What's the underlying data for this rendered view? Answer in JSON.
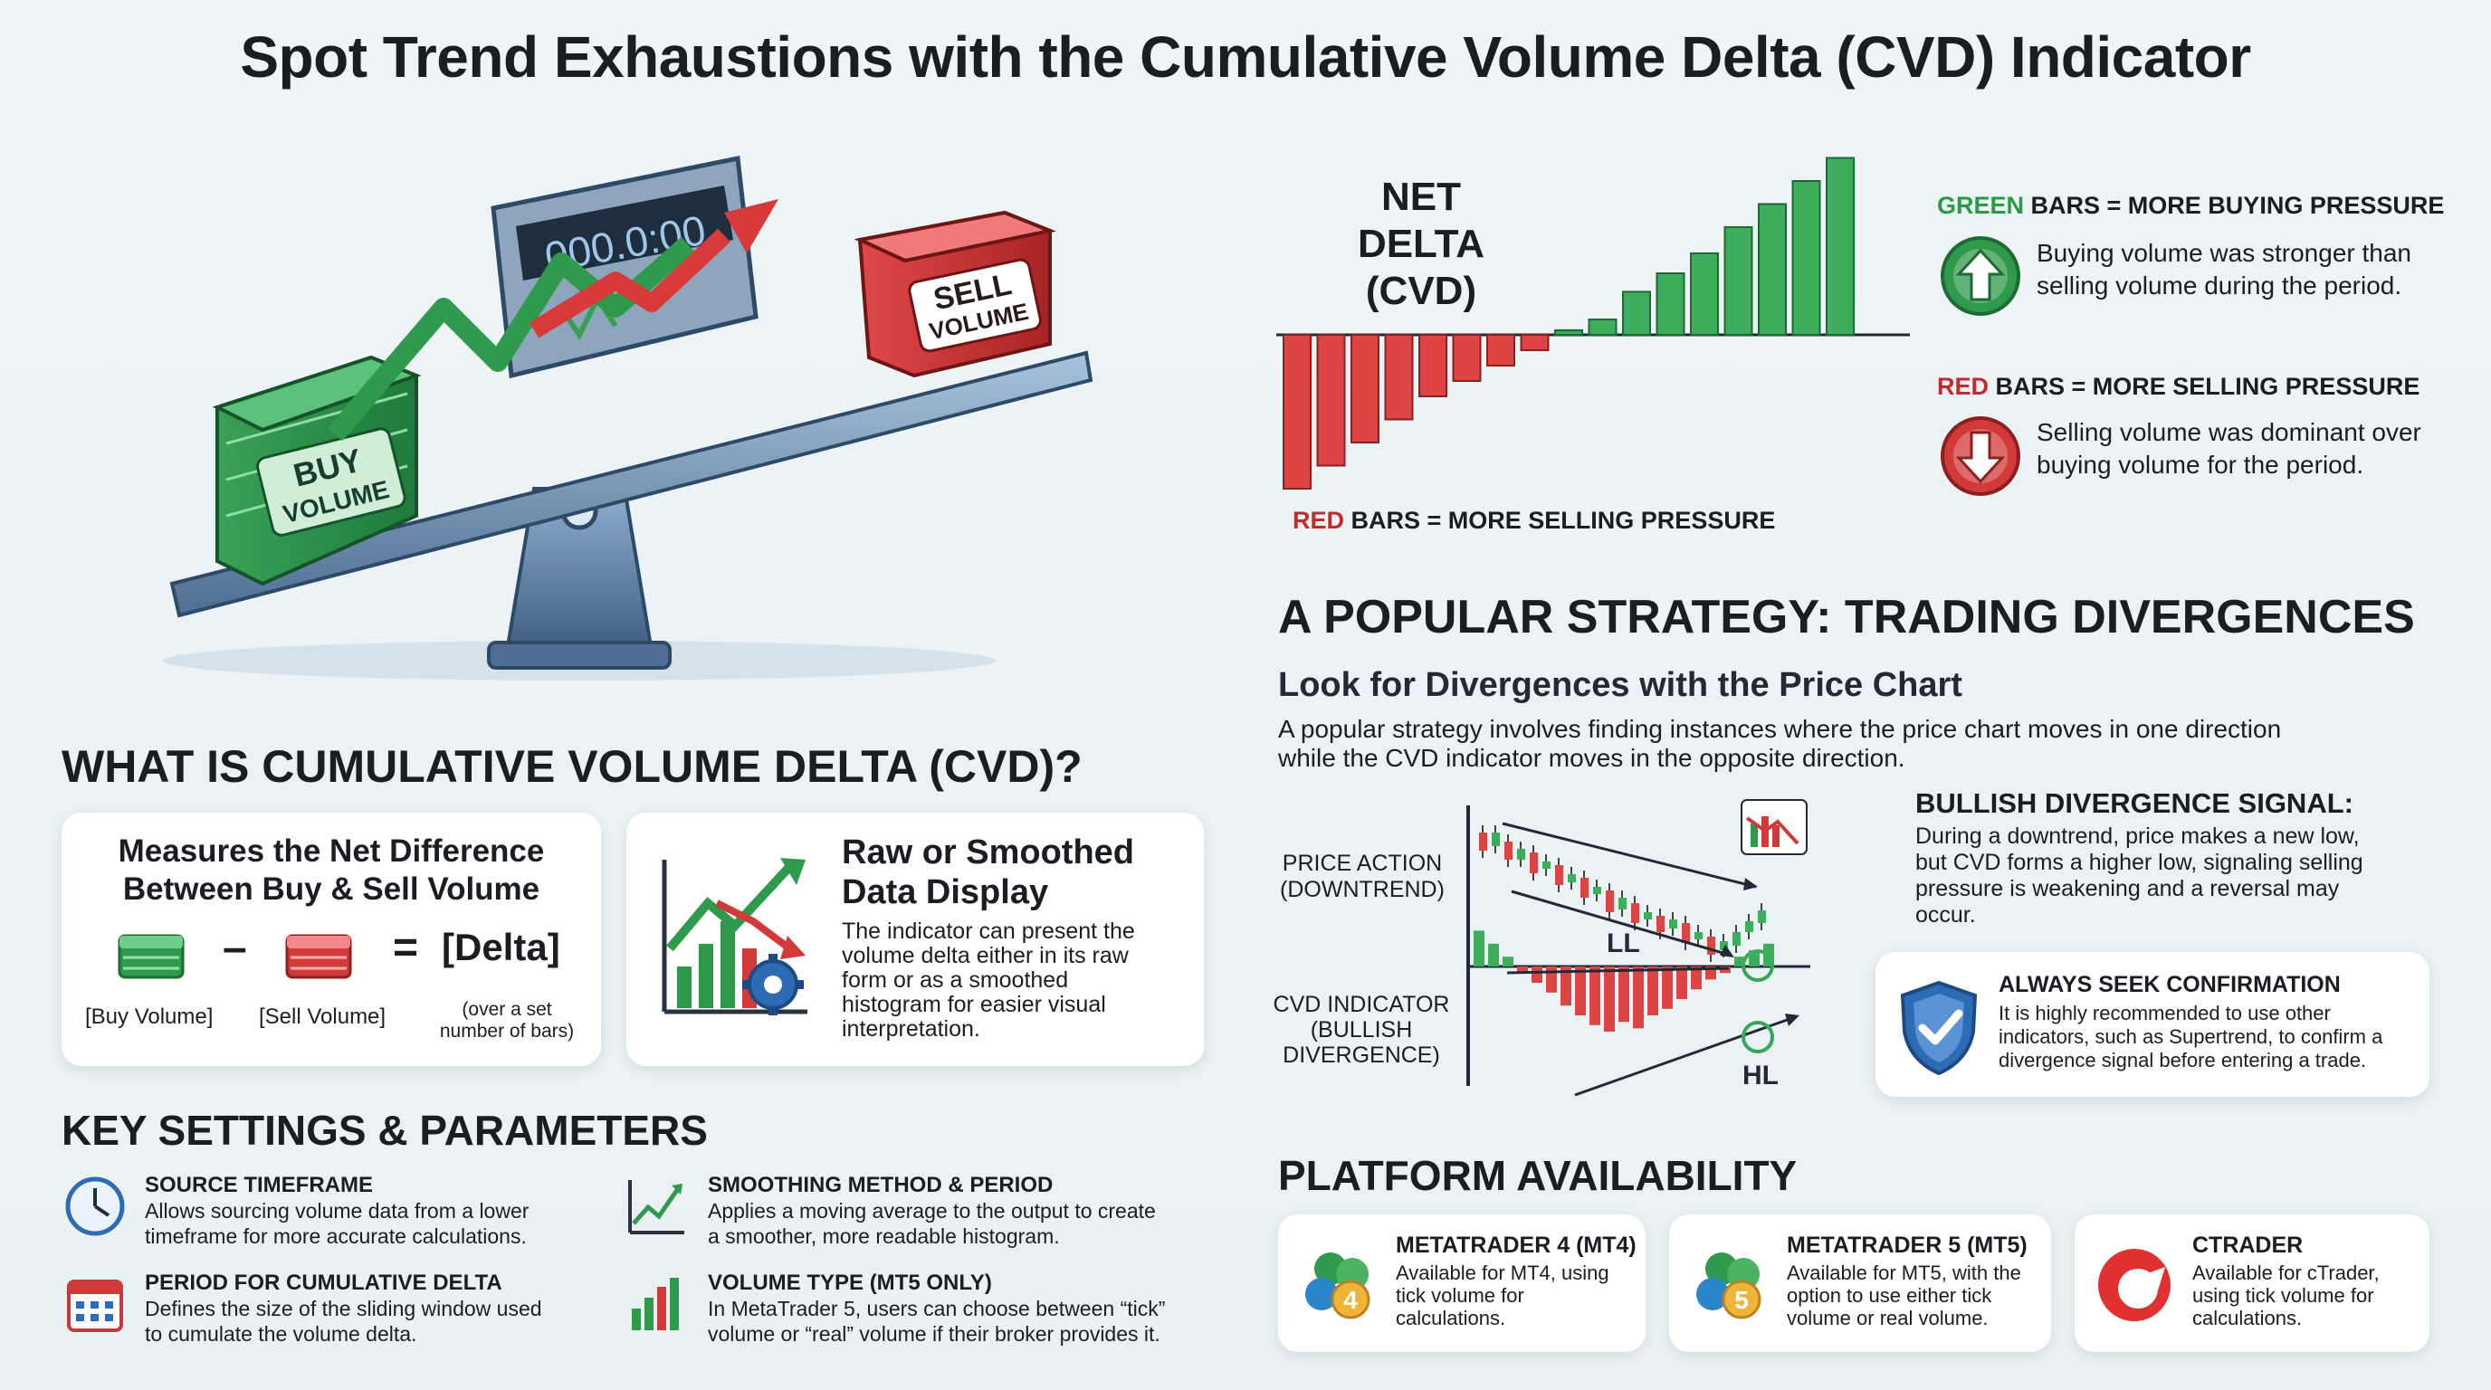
{
  "title": "Spot Trend Exhaustions with the Cumulative Volume Delta (CVD) Indicator",
  "hero": {
    "timer": "000.0:00",
    "buy_label_1": "BUY",
    "buy_label_2": "VOLUME",
    "sell_label_1": "SELL",
    "sell_label_2": "VOLUME"
  },
  "net_delta": {
    "title_line1": "NET DELTA",
    "title_line2": "(CVD)",
    "bottom_prefix": "RED",
    "bottom_suffix": " BARS = MORE SELLING PRESSURE",
    "chart_data": {
      "type": "bar",
      "values": [
        -10,
        -8.5,
        -7,
        -5.5,
        -4,
        -3,
        -2,
        -1,
        0.3,
        1,
        2.8,
        4,
        5.3,
        7,
        8.5,
        10,
        11.5
      ]
    }
  },
  "legend": {
    "green_head_prefix": "GREEN",
    "green_head_suffix": " BARS = MORE BUYING PRESSURE",
    "green_desc_1": "Buying volume was stronger than",
    "green_desc_2": "selling volume during the period.",
    "red_head_prefix": "RED",
    "red_head_suffix": " BARS = MORE SELLING PRESSURE",
    "red_desc_1": "Selling volume was dominant over",
    "red_desc_2": "buying volume for the period."
  },
  "what_is": {
    "heading": "WHAT IS CUMULATIVE VOLUME DELTA (CVD)?",
    "card1_title_1": "Measures the Net Difference",
    "card1_title_2": "Between Buy & Sell Volume",
    "minus": "–",
    "equals": "=",
    "delta": "[Delta]",
    "buy_caption": "[Buy Volume]",
    "sell_caption": "[Sell Volume]",
    "delta_caption_1": "(over a set",
    "delta_caption_2": "number of bars)",
    "card2_title_1": "Raw or Smoothed",
    "card2_title_2": "Data Display",
    "card2_body_1": "The indicator can present the",
    "card2_body_2": "volume delta either in its raw",
    "card2_body_3": "form or as a smoothed",
    "card2_body_4": "histogram for easier visual",
    "card2_body_5": "interpretation."
  },
  "settings": {
    "heading": "KEY SETTINGS & PARAMETERS",
    "items": [
      {
        "title": "SOURCE TIMEFRAME",
        "line1": "Allows sourcing volume data from a lower",
        "line2": "timeframe for more accurate calculations."
      },
      {
        "title": "SMOOTHING METHOD & PERIOD",
        "line1": "Applies a moving average to the output to create",
        "line2": "a smoother, more readable histogram."
      },
      {
        "title": "PERIOD FOR CUMULATIVE DELTA",
        "line1": "Defines the size of the sliding window used",
        "line2": "to cumulate the volume delta."
      },
      {
        "title": "VOLUME TYPE (MT5 ONLY)",
        "line1": "In MetaTrader 5, users can choose between “tick”",
        "line2": "volume or “real” volume if their broker provides it."
      }
    ]
  },
  "strategy": {
    "heading": "A POPULAR STRATEGY: TRADING DIVERGENCES",
    "subheading": "Look for Divergences with the Price Chart",
    "body_1": "A popular strategy involves finding instances where the price chart moves in one direction",
    "body_2": "while the CVD indicator moves in the opposite direction.",
    "price_label_1": "PRICE ACTION",
    "price_label_2": "(DOWNTREND)",
    "cvd_label_1": "CVD INDICATOR",
    "cvd_label_2": "(BULLISH",
    "cvd_label_3": "DIVERGENCE)",
    "ll": "LL",
    "hl": "HL",
    "bullish_title": "BULLISH DIVERGENCE SIGNAL:",
    "bullish_1": "During a downtrend, price makes a new low,",
    "bullish_2": "but CVD forms a higher low, signaling selling",
    "bullish_3": "pressure is weakening and a reversal may",
    "bullish_4": "occur.",
    "confirm_title": "ALWAYS SEEK CONFIRMATION",
    "confirm_1": "It is highly recommended to use other",
    "confirm_2": "indicators, such as Supertrend, to confirm a",
    "confirm_3": "divergence signal before entering a trade."
  },
  "platforms": {
    "heading": "PLATFORM AVAILABILITY",
    "items": [
      {
        "name": "METATRADER 4 (MT4)",
        "badge": "4",
        "l1": "Available for MT4, using",
        "l2": "tick volume for",
        "l3": "calculations."
      },
      {
        "name": "METATRADER 5 (MT5)",
        "badge": "5",
        "l1": "Available for MT5, with the",
        "l2": "option to use either tick",
        "l3": "volume or real volume."
      },
      {
        "name": "CTRADER",
        "badge": "",
        "l1": "Available for cTrader,",
        "l2": "using tick volume for",
        "l3": "calculations."
      }
    ]
  },
  "colors": {
    "green": "#2a9a45",
    "red": "#d23a3a",
    "blue": "#2e6bb5"
  }
}
